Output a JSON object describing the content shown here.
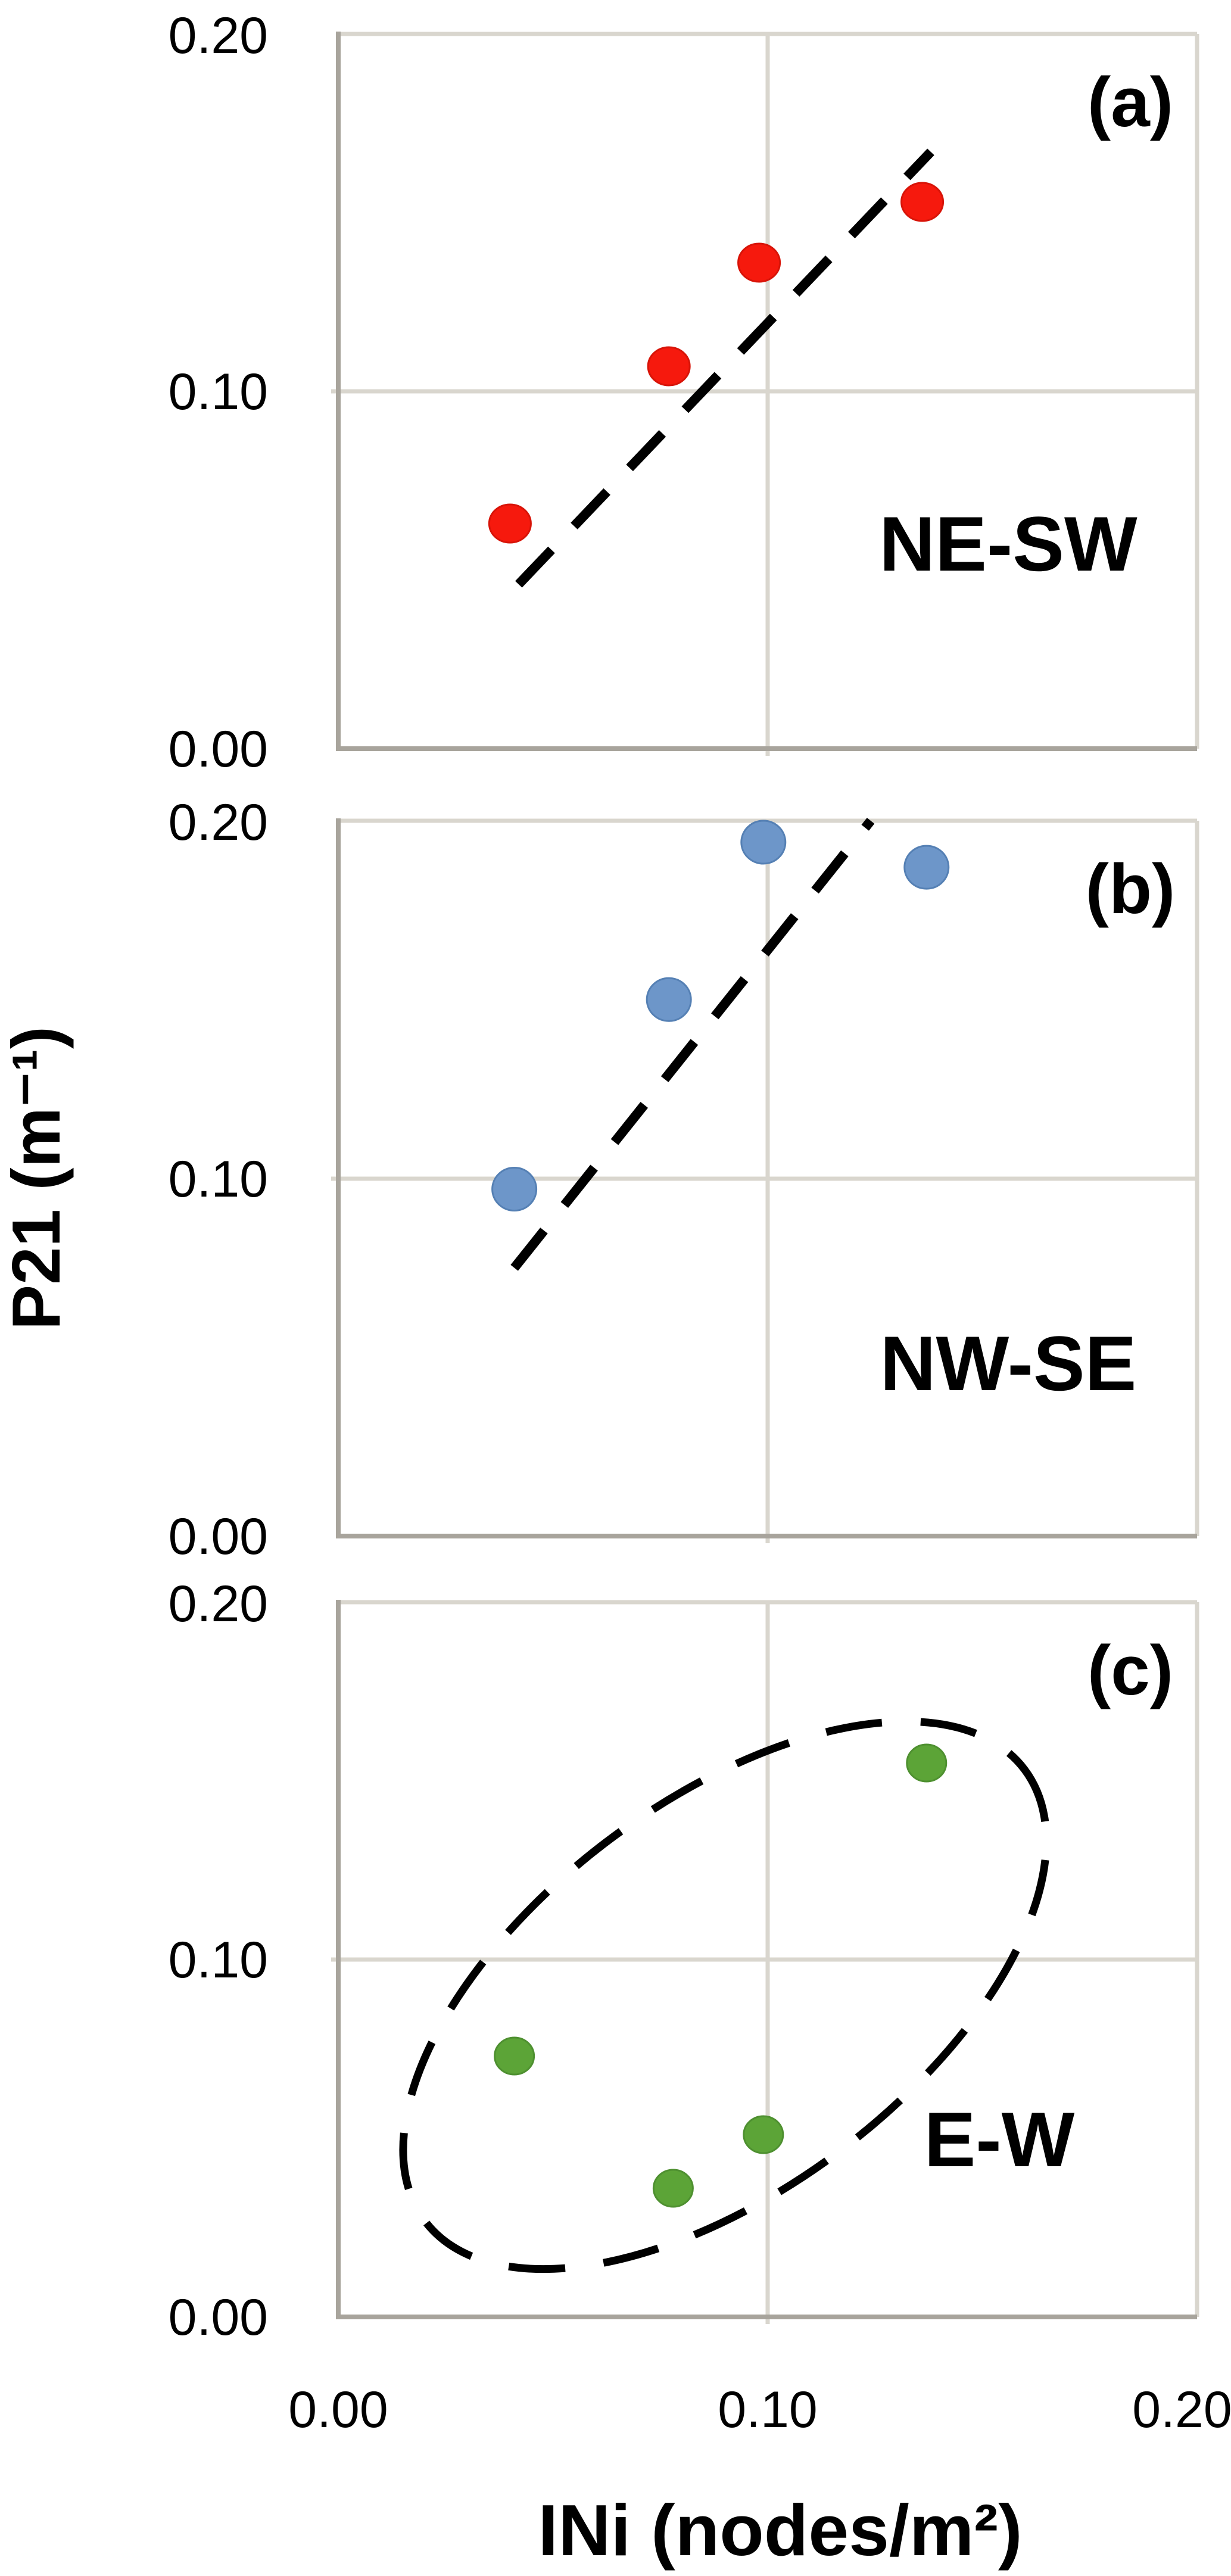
{
  "figure": {
    "background": "#ffffff"
  },
  "axes": {
    "y_title": "P21 (m⁻¹)",
    "x_title": "INi (nodes/m²)",
    "y_tick_labels": [
      "0.20",
      "0.10",
      "0.00"
    ],
    "x_tick_labels": [
      "0.00",
      "0.10",
      "0.20"
    ],
    "axis_line_color": "#a8a49c",
    "gridline_color": "#d9d6ce"
  },
  "panels": [
    {
      "tag": "(a)",
      "annotation": "NE-SW",
      "dot_color": "#f6190d"
    },
    {
      "tag": "(b)",
      "annotation": "NW-SE",
      "dot_color": "#6d96c9"
    },
    {
      "tag": "(c)",
      "annotation": "E-W",
      "dot_color": "#5ca437"
    }
  ],
  "chart_data": [
    {
      "type": "scatter",
      "panel": "a",
      "title": "NE-SW",
      "xlabel": "INi (nodes/m²)",
      "ylabel": "P21 (m⁻¹)",
      "xlim": [
        0.0,
        0.2
      ],
      "ylim": [
        0.0,
        0.2
      ],
      "grid": "on",
      "marker_color": "#f6190d",
      "marker_edge": "#d81408",
      "marker_rx": 35,
      "marker_ry": 32,
      "points": [
        {
          "x": 0.04,
          "y": 0.063
        },
        {
          "x": 0.077,
          "y": 0.107
        },
        {
          "x": 0.098,
          "y": 0.136
        },
        {
          "x": 0.136,
          "y": 0.153
        }
      ],
      "trendline": {
        "x1": 0.042,
        "y1": 0.046,
        "x2": 0.138,
        "y2": 0.167,
        "style": "dashed"
      }
    },
    {
      "type": "scatter",
      "panel": "b",
      "title": "NW-SE",
      "xlabel": "INi (nodes/m²)",
      "ylabel": "P21 (m⁻¹)",
      "xlim": [
        0.0,
        0.2
      ],
      "ylim": [
        0.0,
        0.2
      ],
      "grid": "on",
      "marker_color": "#6d96c9",
      "marker_edge": "#5580b4",
      "marker_rx": 37,
      "marker_ry": 36,
      "points": [
        {
          "x": 0.041,
          "y": 0.097
        },
        {
          "x": 0.077,
          "y": 0.15
        },
        {
          "x": 0.099,
          "y": 0.194
        },
        {
          "x": 0.137,
          "y": 0.187
        }
      ],
      "trendline": {
        "x1": 0.041,
        "y1": 0.075,
        "x2": 0.124,
        "y2": 0.2,
        "style": "dashed"
      }
    },
    {
      "type": "scatter",
      "panel": "c",
      "title": "E-W",
      "xlabel": "INi (nodes/m²)",
      "ylabel": "P21 (m⁻¹)",
      "xlim": [
        0.0,
        0.2
      ],
      "ylim": [
        0.0,
        0.2
      ],
      "grid": "on",
      "marker_color": "#5ca437",
      "marker_edge": "#4e9030",
      "marker_rx": 33,
      "marker_ry": 31,
      "points": [
        {
          "x": 0.041,
          "y": 0.073
        },
        {
          "x": 0.078,
          "y": 0.036
        },
        {
          "x": 0.099,
          "y": 0.051
        },
        {
          "x": 0.137,
          "y": 0.155
        }
      ],
      "ellipse": {
        "cx": 0.09,
        "cy": 0.09,
        "rx_frac": 0.437,
        "ry_frac": 0.271,
        "angle": -37,
        "style": "dashed"
      }
    }
  ]
}
